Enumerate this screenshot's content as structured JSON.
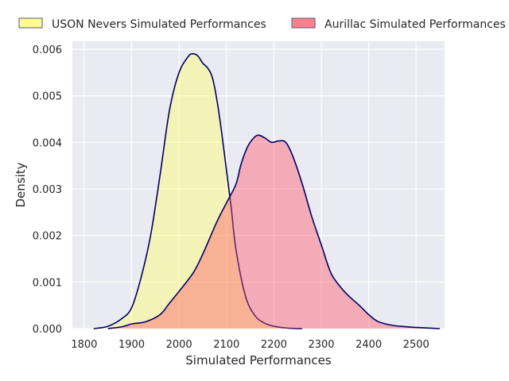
{
  "chart_data": {
    "type": "area",
    "title": "",
    "xlabel": "Simulated Performances",
    "ylabel": "Density",
    "xlim": [
      1775,
      2560
    ],
    "ylim": [
      0,
      0.00617
    ],
    "x_ticks": [
      1800,
      1900,
      2000,
      2100,
      2200,
      2300,
      2400,
      2500
    ],
    "y_ticks": [
      0.0,
      0.001,
      0.002,
      0.003,
      0.004,
      0.005,
      0.006
    ],
    "y_tick_labels": [
      "0.000",
      "0.001",
      "0.002",
      "0.003",
      "0.004",
      "0.005",
      "0.006"
    ],
    "grid": true,
    "legend_position": "top",
    "series": [
      {
        "name": "USON Nevers Simulated Performances",
        "fill": "#ffff66",
        "fill_opacity": 0.42,
        "edge": "#000066",
        "points": [
          [
            1820,
            0.0
          ],
          [
            1850,
            5e-05
          ],
          [
            1880,
            0.00022
          ],
          [
            1900,
            0.00045
          ],
          [
            1920,
            0.0011
          ],
          [
            1940,
            0.002
          ],
          [
            1960,
            0.0033
          ],
          [
            1980,
            0.0047
          ],
          [
            2000,
            0.0055
          ],
          [
            2020,
            0.00585
          ],
          [
            2030,
            0.0059
          ],
          [
            2040,
            0.00585
          ],
          [
            2050,
            0.0057
          ],
          [
            2060,
            0.0056
          ],
          [
            2070,
            0.0054
          ],
          [
            2080,
            0.0049
          ],
          [
            2090,
            0.0042
          ],
          [
            2100,
            0.0034
          ],
          [
            2110,
            0.0026
          ],
          [
            2120,
            0.0017
          ],
          [
            2140,
            0.0007
          ],
          [
            2160,
            0.00028
          ],
          [
            2180,
            0.00012
          ],
          [
            2200,
            5e-05
          ],
          [
            2230,
            1e-05
          ],
          [
            2260,
            0.0
          ]
        ]
      },
      {
        "name": "Aurillac Simulated Performances",
        "fill": "#ff5566",
        "fill_opacity": 0.42,
        "edge": "#000066",
        "points": [
          [
            1850,
            0.0
          ],
          [
            1880,
            4e-05
          ],
          [
            1900,
            0.0001
          ],
          [
            1930,
            0.00015
          ],
          [
            1960,
            0.0003
          ],
          [
            1980,
            0.00055
          ],
          [
            2000,
            0.0008
          ],
          [
            2030,
            0.0012
          ],
          [
            2050,
            0.0016
          ],
          [
            2080,
            0.0023
          ],
          [
            2100,
            0.0027
          ],
          [
            2120,
            0.0031
          ],
          [
            2130,
            0.0035
          ],
          [
            2140,
            0.0038
          ],
          [
            2150,
            0.004
          ],
          [
            2165,
            0.00415
          ],
          [
            2180,
            0.0041
          ],
          [
            2195,
            0.004
          ],
          [
            2210,
            0.00403
          ],
          [
            2225,
            0.004
          ],
          [
            2240,
            0.0037
          ],
          [
            2260,
            0.0031
          ],
          [
            2280,
            0.0024
          ],
          [
            2300,
            0.0018
          ],
          [
            2320,
            0.0012
          ],
          [
            2340,
            0.0009
          ],
          [
            2360,
            0.00068
          ],
          [
            2380,
            0.0005
          ],
          [
            2400,
            0.0003
          ],
          [
            2420,
            0.00015
          ],
          [
            2450,
            7e-05
          ],
          [
            2480,
            4e-05
          ],
          [
            2510,
            2e-05
          ],
          [
            2550,
            0.0
          ]
        ]
      }
    ]
  }
}
